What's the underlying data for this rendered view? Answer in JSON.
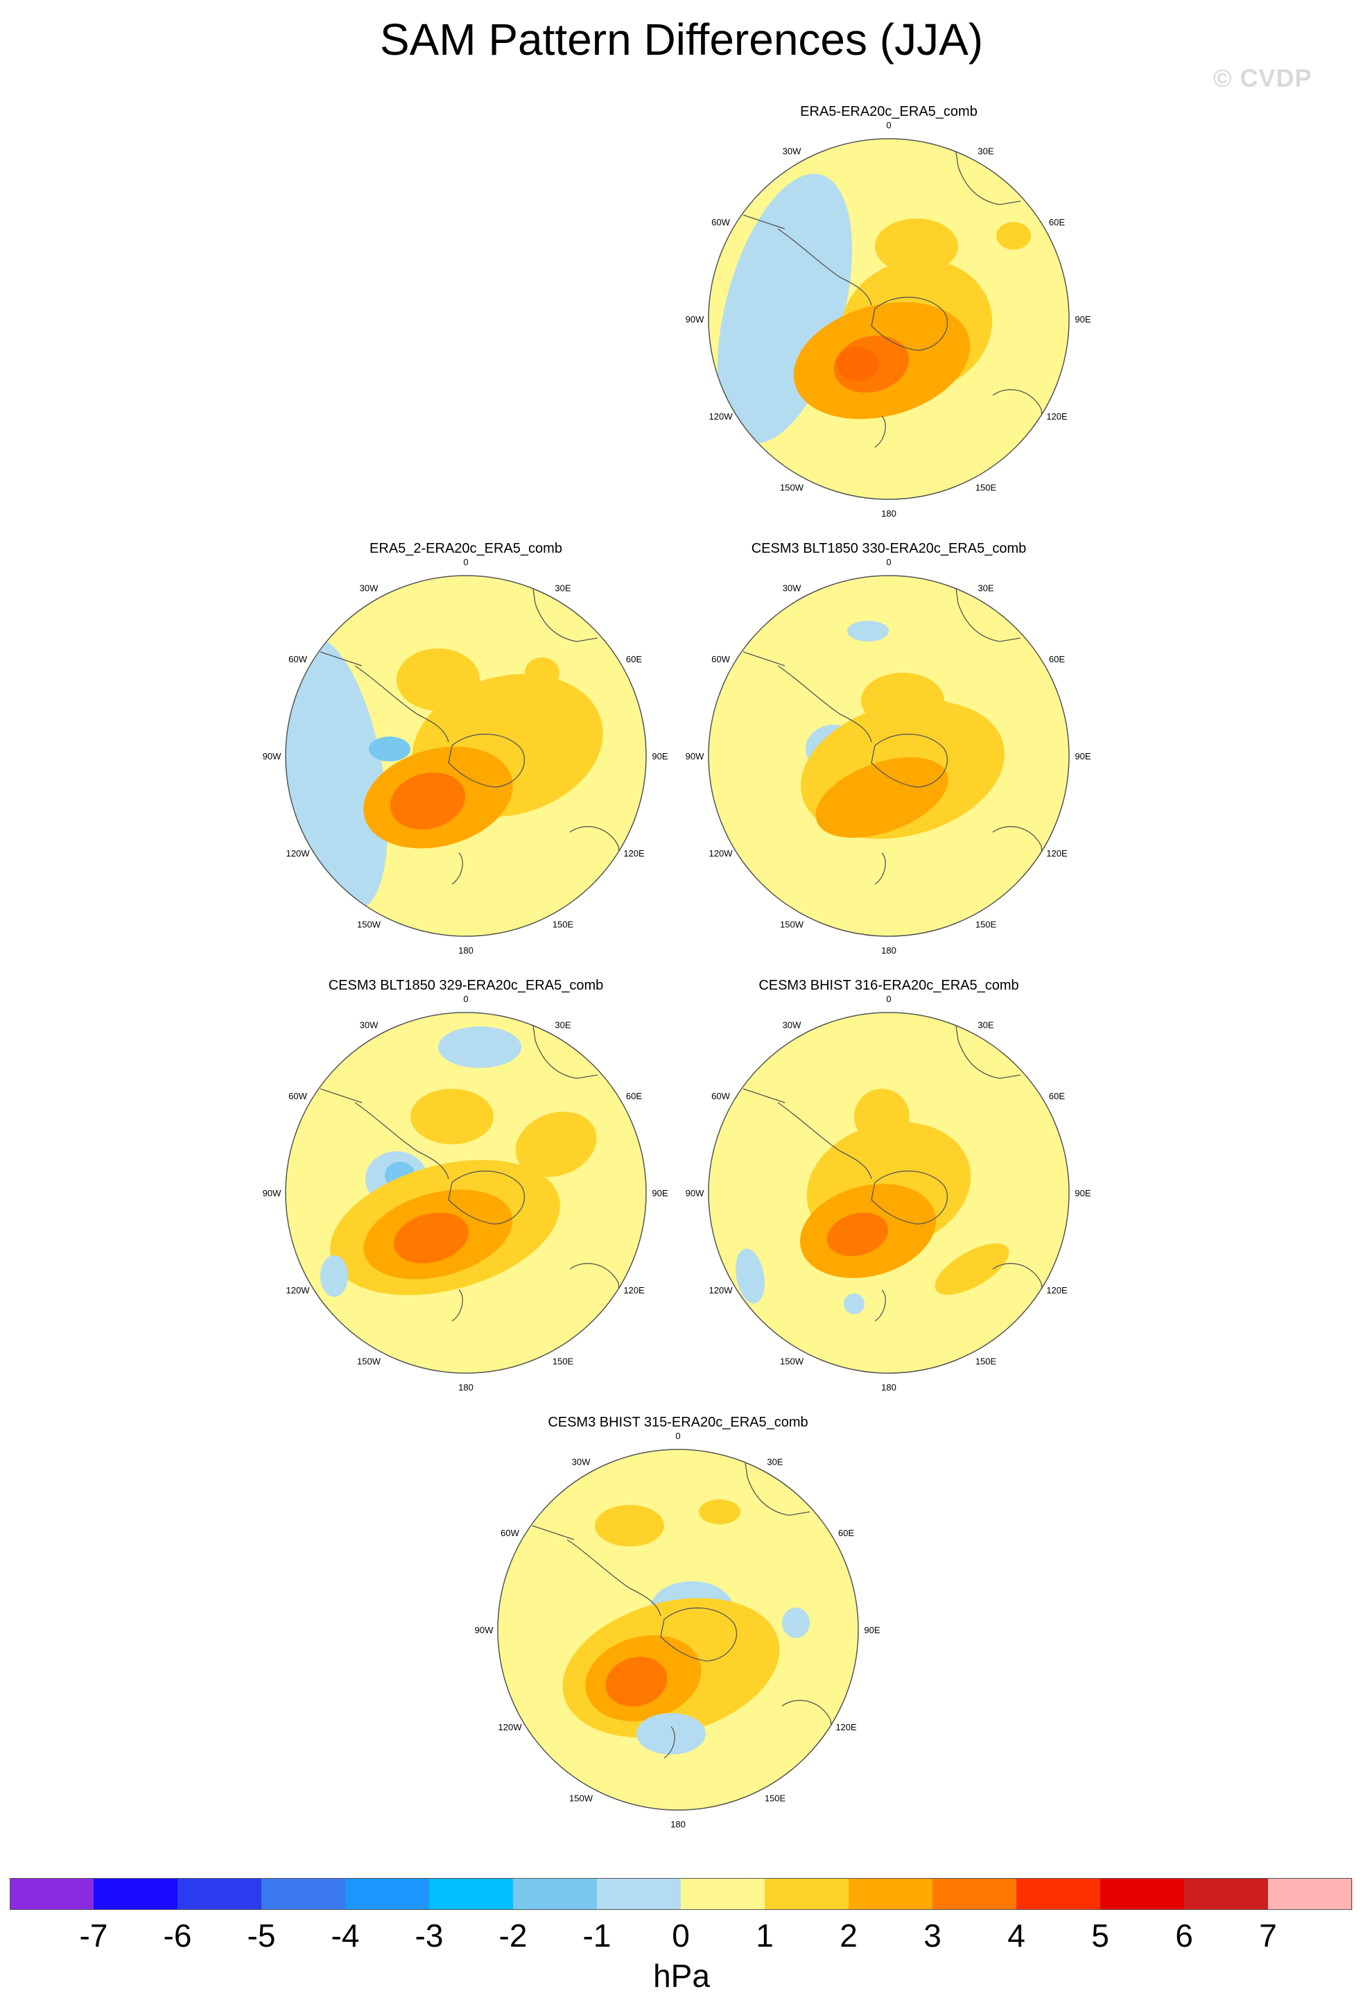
{
  "header": {
    "title": "SAM Pattern Differences (JJA)",
    "watermark": "© CVDP"
  },
  "lon_labels": [
    "0",
    "30E",
    "60E",
    "90E",
    "120E",
    "150E",
    "180",
    "150W",
    "120W",
    "90W",
    "60W",
    "30W"
  ],
  "panels": [
    {
      "title": "ERA5-ERA20c_ERA5_comb"
    },
    {
      "title": "ERA5_2-ERA20c_ERA5_comb"
    },
    {
      "title": "CESM3 BLT1850 330-ERA20c_ERA5_comb"
    },
    {
      "title": "CESM3 BLT1850 329-ERA20c_ERA5_comb"
    },
    {
      "title": "CESM3 BHIST 316-ERA20c_ERA5_comb"
    },
    {
      "title": "CESM3 BHIST 315-ERA20c_ERA5_comb"
    }
  ],
  "colorbar": {
    "units": "hPa",
    "labels": [
      "-7",
      "-6",
      "-5",
      "-4",
      "-3",
      "-2",
      "-1",
      "0",
      "1",
      "2",
      "3",
      "4",
      "5",
      "6",
      "7"
    ],
    "colors": [
      "#8a2be2",
      "#1a0aff",
      "#2b3cf0",
      "#3a78f0",
      "#1e96ff",
      "#00c0ff",
      "#78c8f0",
      "#b4dcf0",
      "#fff890",
      "#ffd22a",
      "#ffa800",
      "#ff7800",
      "#ff3000",
      "#e60000",
      "#cc1e1e",
      "#ffb4b4"
    ]
  }
}
